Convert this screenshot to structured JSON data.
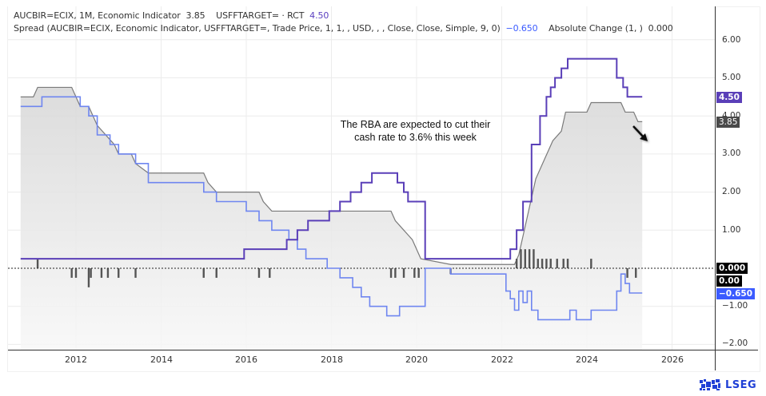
{
  "legend": {
    "line1": {
      "series1_label": "AUCBIR=ECIX, 1M, Economic Indicator",
      "series1_value": "3.85",
      "series2_label": "USFFTARGET= · RCT",
      "series2_value": "4.50"
    },
    "line2": {
      "spread_label": "Spread (AUCBIR=ECIX, Economic Indicator, USFFTARGET=, Trade Price, 1, 1, , USD, , , Close, Close, Simple, 9, 0)",
      "spread_value": "−0.650",
      "change_label": "Absolute Change (1, )",
      "change_value": "0.000"
    }
  },
  "annotation": {
    "line1": "The RBA are expected to cut their",
    "line2": "cash rate to 3.6% this week"
  },
  "y_axis": {
    "ticks": [
      "6.00",
      "5.00",
      "4.00",
      "3.00",
      "2.00",
      "1.00",
      "−1.00",
      "−2.00"
    ]
  },
  "x_axis": {
    "ticks": [
      "2012",
      "2014",
      "2016",
      "2018",
      "2020",
      "2022",
      "2024",
      "2026"
    ]
  },
  "badges": {
    "usff": "4.50",
    "aucbir": "3.85",
    "change": "0.000",
    "zero": "0.00",
    "spread": "−0.650"
  },
  "logo": {
    "text": "LSEG"
  },
  "colors": {
    "aucbir_line": "#7a7a7a",
    "aucbir_fill": "#d9d9d9",
    "usff_line": "#5a3fb8",
    "spread_line": "#6f86f0",
    "change_bars": "#555555",
    "badge_usff": "#5a3fb8",
    "badge_aucbir": "#4a4a4a",
    "badge_change": "#000000",
    "badge_spread": "#3b5bff",
    "logo": "#1f3fd6"
  },
  "chart_data": {
    "type": "line",
    "title": "",
    "xlabel": "",
    "ylabel": "",
    "ylim": [
      -2.2,
      6.6
    ],
    "xlim": [
      2010.7,
      2027.3
    ],
    "grid": true,
    "legend_position": "top-left",
    "x_ticks": [
      2012,
      2014,
      2016,
      2018,
      2020,
      2022,
      2024,
      2026
    ],
    "y_ticks": [
      6,
      5,
      4,
      3,
      2,
      1,
      0,
      -1,
      -2
    ],
    "series": [
      {
        "name": "AUCBIR=ECIX, 1M, Economic Indicator (RBA cash rate)",
        "style": "area step",
        "last_value": 3.85,
        "points": [
          [
            2010.7,
            4.5
          ],
          [
            2011.0,
            4.5
          ],
          [
            2011.1,
            4.75
          ],
          [
            2011.9,
            4.75
          ],
          [
            2012.1,
            4.25
          ],
          [
            2012.3,
            4.25
          ],
          [
            2012.4,
            4.0
          ],
          [
            2012.5,
            3.75
          ],
          [
            2012.7,
            3.5
          ],
          [
            2012.9,
            3.25
          ],
          [
            2013.0,
            3.0
          ],
          [
            2013.3,
            3.0
          ],
          [
            2013.4,
            2.75
          ],
          [
            2013.7,
            2.5
          ],
          [
            2015.0,
            2.5
          ],
          [
            2015.1,
            2.25
          ],
          [
            2015.3,
            2.0
          ],
          [
            2016.3,
            2.0
          ],
          [
            2016.4,
            1.75
          ],
          [
            2016.6,
            1.5
          ],
          [
            2019.4,
            1.5
          ],
          [
            2019.5,
            1.25
          ],
          [
            2019.7,
            1.0
          ],
          [
            2019.9,
            0.75
          ],
          [
            2020.1,
            0.25
          ],
          [
            2020.8,
            0.1
          ],
          [
            2022.3,
            0.1
          ],
          [
            2022.4,
            0.35
          ],
          [
            2022.5,
            0.85
          ],
          [
            2022.6,
            1.35
          ],
          [
            2022.7,
            1.85
          ],
          [
            2022.8,
            2.35
          ],
          [
            2023.0,
            2.85
          ],
          [
            2023.1,
            3.1
          ],
          [
            2023.2,
            3.35
          ],
          [
            2023.4,
            3.6
          ],
          [
            2023.5,
            4.1
          ],
          [
            2024.0,
            4.1
          ],
          [
            2024.1,
            4.35
          ],
          [
            2024.8,
            4.35
          ],
          [
            2024.9,
            4.1
          ],
          [
            2025.1,
            4.1
          ],
          [
            2025.2,
            3.85
          ],
          [
            2025.3,
            3.85
          ]
        ]
      },
      {
        "name": "USFFTARGET= (US Fed Funds target)",
        "style": "step",
        "last_value": 4.5,
        "points": [
          [
            2010.7,
            0.25
          ],
          [
            2015.95,
            0.25
          ],
          [
            2015.95,
            0.5
          ],
          [
            2016.95,
            0.5
          ],
          [
            2016.95,
            0.75
          ],
          [
            2017.2,
            0.75
          ],
          [
            2017.2,
            1.0
          ],
          [
            2017.45,
            1.0
          ],
          [
            2017.45,
            1.25
          ],
          [
            2017.95,
            1.25
          ],
          [
            2017.95,
            1.5
          ],
          [
            2018.2,
            1.5
          ],
          [
            2018.2,
            1.75
          ],
          [
            2018.45,
            1.75
          ],
          [
            2018.45,
            2.0
          ],
          [
            2018.7,
            2.0
          ],
          [
            2018.7,
            2.25
          ],
          [
            2018.95,
            2.25
          ],
          [
            2018.95,
            2.5
          ],
          [
            2019.55,
            2.5
          ],
          [
            2019.55,
            2.25
          ],
          [
            2019.7,
            2.25
          ],
          [
            2019.7,
            2.0
          ],
          [
            2019.8,
            2.0
          ],
          [
            2019.8,
            1.75
          ],
          [
            2020.2,
            1.75
          ],
          [
            2020.2,
            0.25
          ],
          [
            2022.2,
            0.25
          ],
          [
            2022.2,
            0.5
          ],
          [
            2022.35,
            0.5
          ],
          [
            2022.35,
            1.0
          ],
          [
            2022.5,
            1.0
          ],
          [
            2022.5,
            1.75
          ],
          [
            2022.7,
            1.75
          ],
          [
            2022.7,
            3.25
          ],
          [
            2022.9,
            3.25
          ],
          [
            2022.9,
            4.0
          ],
          [
            2023.05,
            4.0
          ],
          [
            2023.05,
            4.5
          ],
          [
            2023.15,
            4.5
          ],
          [
            2023.15,
            4.75
          ],
          [
            2023.25,
            4.75
          ],
          [
            2023.25,
            5.0
          ],
          [
            2023.4,
            5.0
          ],
          [
            2023.4,
            5.25
          ],
          [
            2023.55,
            5.25
          ],
          [
            2023.55,
            5.5
          ],
          [
            2024.7,
            5.5
          ],
          [
            2024.7,
            5.0
          ],
          [
            2024.85,
            5.0
          ],
          [
            2024.85,
            4.75
          ],
          [
            2024.95,
            4.75
          ],
          [
            2024.95,
            4.5
          ],
          [
            2025.3,
            4.5
          ]
        ]
      },
      {
        "name": "Spread (AUCBIR − USFFTARGET)",
        "style": "step",
        "last_value": -0.65,
        "points": [
          [
            2010.7,
            4.25
          ],
          [
            2011.2,
            4.25
          ],
          [
            2011.2,
            4.5
          ],
          [
            2012.1,
            4.5
          ],
          [
            2012.1,
            4.25
          ],
          [
            2012.3,
            4.25
          ],
          [
            2012.3,
            4.0
          ],
          [
            2012.5,
            4.0
          ],
          [
            2012.5,
            3.5
          ],
          [
            2012.8,
            3.5
          ],
          [
            2012.8,
            3.25
          ],
          [
            2013.0,
            3.25
          ],
          [
            2013.0,
            3.0
          ],
          [
            2013.4,
            3.0
          ],
          [
            2013.4,
            2.75
          ],
          [
            2013.7,
            2.75
          ],
          [
            2013.7,
            2.25
          ],
          [
            2015.0,
            2.25
          ],
          [
            2015.0,
            2.0
          ],
          [
            2015.3,
            2.0
          ],
          [
            2015.3,
            1.75
          ],
          [
            2016.0,
            1.75
          ],
          [
            2016.0,
            1.5
          ],
          [
            2016.3,
            1.5
          ],
          [
            2016.3,
            1.25
          ],
          [
            2016.6,
            1.25
          ],
          [
            2016.6,
            1.0
          ],
          [
            2017.0,
            1.0
          ],
          [
            2017.0,
            0.75
          ],
          [
            2017.2,
            0.75
          ],
          [
            2017.2,
            0.5
          ],
          [
            2017.4,
            0.5
          ],
          [
            2017.4,
            0.25
          ],
          [
            2017.9,
            0.25
          ],
          [
            2017.9,
            0.0
          ],
          [
            2018.2,
            0.0
          ],
          [
            2018.2,
            -0.25
          ],
          [
            2018.5,
            -0.25
          ],
          [
            2018.5,
            -0.5
          ],
          [
            2018.7,
            -0.5
          ],
          [
            2018.7,
            -0.75
          ],
          [
            2018.9,
            -0.75
          ],
          [
            2018.9,
            -1.0
          ],
          [
            2019.3,
            -1.0
          ],
          [
            2019.3,
            -1.25
          ],
          [
            2019.6,
            -1.25
          ],
          [
            2019.6,
            -1.0
          ],
          [
            2020.2,
            -1.0
          ],
          [
            2020.2,
            0.0
          ],
          [
            2020.8,
            0.0
          ],
          [
            2020.8,
            -0.15
          ],
          [
            2022.1,
            -0.15
          ],
          [
            2022.1,
            -0.6
          ],
          [
            2022.2,
            -0.6
          ],
          [
            2022.2,
            -0.8
          ],
          [
            2022.3,
            -0.8
          ],
          [
            2022.3,
            -1.1
          ],
          [
            2022.4,
            -1.1
          ],
          [
            2022.4,
            -0.6
          ],
          [
            2022.5,
            -0.6
          ],
          [
            2022.5,
            -0.9
          ],
          [
            2022.6,
            -0.9
          ],
          [
            2022.6,
            -0.6
          ],
          [
            2022.7,
            -0.6
          ],
          [
            2022.7,
            -1.1
          ],
          [
            2022.85,
            -1.1
          ],
          [
            2022.85,
            -1.35
          ],
          [
            2023.6,
            -1.35
          ],
          [
            2023.6,
            -1.1
          ],
          [
            2023.75,
            -1.1
          ],
          [
            2023.75,
            -1.35
          ],
          [
            2024.1,
            -1.35
          ],
          [
            2024.1,
            -1.1
          ],
          [
            2024.7,
            -1.1
          ],
          [
            2024.7,
            -0.6
          ],
          [
            2024.8,
            -0.6
          ],
          [
            2024.8,
            -0.15
          ],
          [
            2024.9,
            -0.15
          ],
          [
            2024.9,
            -0.4
          ],
          [
            2025.0,
            -0.4
          ],
          [
            2025.0,
            -0.65
          ],
          [
            2025.3,
            -0.65
          ]
        ]
      },
      {
        "name": "Absolute Change (1, )",
        "style": "histogram",
        "last_value": 0.0,
        "points": [
          [
            2011.1,
            0.25
          ],
          [
            2011.9,
            -0.25
          ],
          [
            2012.0,
            -0.25
          ],
          [
            2012.3,
            -0.5
          ],
          [
            2012.35,
            -0.25
          ],
          [
            2012.6,
            -0.25
          ],
          [
            2012.75,
            -0.25
          ],
          [
            2013.0,
            -0.25
          ],
          [
            2013.4,
            -0.25
          ],
          [
            2015.0,
            -0.25
          ],
          [
            2015.3,
            -0.25
          ],
          [
            2016.3,
            -0.25
          ],
          [
            2016.55,
            -0.25
          ],
          [
            2019.4,
            -0.25
          ],
          [
            2019.5,
            -0.25
          ],
          [
            2019.7,
            -0.25
          ],
          [
            2019.95,
            -0.25
          ],
          [
            2020.05,
            -0.25
          ],
          [
            2020.8,
            -0.15
          ],
          [
            2022.35,
            0.25
          ],
          [
            2022.45,
            0.5
          ],
          [
            2022.55,
            0.5
          ],
          [
            2022.65,
            0.5
          ],
          [
            2022.75,
            0.5
          ],
          [
            2022.85,
            0.25
          ],
          [
            2022.95,
            0.25
          ],
          [
            2023.05,
            0.25
          ],
          [
            2023.15,
            0.25
          ],
          [
            2023.3,
            0.25
          ],
          [
            2023.45,
            0.25
          ],
          [
            2023.55,
            0.25
          ],
          [
            2024.1,
            0.25
          ],
          [
            2024.95,
            -0.25
          ],
          [
            2025.15,
            -0.25
          ]
        ]
      }
    ],
    "annotations": [
      {
        "text": "The RBA are expected to cut their cash rate to 3.6% this week",
        "x": 2020.0,
        "y": 3.5
      },
      {
        "type": "arrow",
        "direction": "down-right",
        "x": 2025.5,
        "y": 3.5
      }
    ]
  }
}
